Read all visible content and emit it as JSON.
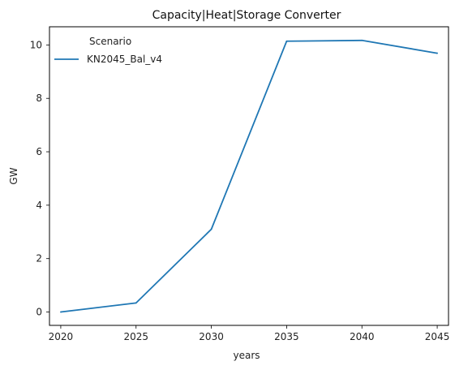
{
  "chart_data": {
    "type": "line",
    "title": "Capacity|Heat|Storage Converter",
    "xlabel": "years",
    "ylabel": "GW",
    "x": [
      2020,
      2025,
      2030,
      2035,
      2040,
      2045
    ],
    "xticks": [
      2020,
      2025,
      2030,
      2035,
      2040,
      2045
    ],
    "yticks": [
      0,
      2,
      4,
      6,
      8,
      10
    ],
    "xlim": [
      2019.25,
      2045.75
    ],
    "ylim": [
      -0.5,
      10.68
    ],
    "grid": false,
    "legend": {
      "title": "Scenario",
      "placement": "top-left"
    },
    "series": [
      {
        "name": "KN2045_Bal_v4",
        "color": "#1f77b4",
        "values": [
          0.0,
          0.34,
          3.1,
          10.14,
          10.17,
          9.69
        ]
      }
    ]
  }
}
